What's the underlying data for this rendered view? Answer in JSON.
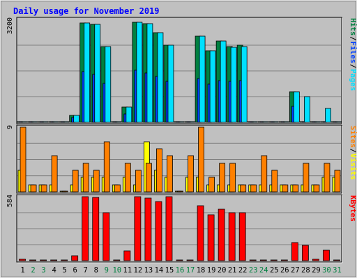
{
  "title": "Daily usage for November 2019",
  "colors": {
    "background": "#c0c0c0",
    "plot_bg": "#c0c0c0",
    "title_text": "#0000ff",
    "hits": "#008040",
    "files": "#0040ff",
    "pages": "#00e0ff",
    "visits": "#ffff00",
    "sites": "#ff8000",
    "kbytes": "#ff0000",
    "weekday_label": "#000000",
    "weekend_label": "#008040"
  },
  "chart_data": {
    "type": "bar",
    "days": [
      "1",
      "2",
      "3",
      "4",
      "5",
      "6",
      "7",
      "8",
      "9",
      "10",
      "11",
      "12",
      "13",
      "14",
      "15",
      "16",
      "17",
      "18",
      "19",
      "20",
      "21",
      "22",
      "23",
      "24",
      "25",
      "26",
      "27",
      "28",
      "29",
      "30",
      "31"
    ],
    "weekend_days": [
      "2",
      "3",
      "9",
      "10",
      "16",
      "17",
      "23",
      "24",
      "30",
      "31"
    ],
    "panels": [
      {
        "id": "requests",
        "axis_max_label": "3200",
        "ylim": [
          0,
          3200
        ],
        "legend": [
          {
            "text": "Hits",
            "color": "#008040"
          },
          {
            "text": "/",
            "color": "#000000"
          },
          {
            "text": "Files",
            "color": "#0040ff"
          },
          {
            "text": "/",
            "color": "#000000"
          },
          {
            "text": "Pages",
            "color": "#00e0ff"
          }
        ],
        "series": [
          {
            "name": "Hits",
            "color": "#008040",
            "values": [
              0,
              0,
              0,
              0,
              0,
              220,
              3100,
              3050,
              2350,
              0,
              480,
              3120,
              3070,
              2780,
              2400,
              0,
              0,
              2680,
              2230,
              2530,
              2360,
              2390,
              0,
              0,
              0,
              0,
              950,
              0,
              0,
              0,
              0
            ]
          },
          {
            "name": "Files",
            "color": "#0040ff",
            "values": [
              0,
              0,
              0,
              0,
              0,
              160,
              1580,
              1490,
              1210,
              0,
              260,
              1620,
              1530,
              1430,
              1270,
              0,
              0,
              1370,
              1180,
              1300,
              1270,
              1300,
              0,
              0,
              0,
              0,
              490,
              0,
              0,
              0,
              0
            ]
          },
          {
            "name": "Pages",
            "color": "#00e0ff",
            "values": [
              0,
              0,
              0,
              0,
              0,
              220,
              3100,
              3050,
              2350,
              0,
              480,
              3120,
              3070,
              2780,
              2400,
              0,
              0,
              2680,
              2230,
              2530,
              2340,
              2360,
              0,
              0,
              0,
              0,
              950,
              800,
              0,
              430,
              0
            ]
          }
        ]
      },
      {
        "id": "visits",
        "axis_max_label": "9",
        "ylim": [
          0,
          9
        ],
        "legend": [
          {
            "text": "Sites",
            "color": "#ff8000"
          },
          {
            "text": "/",
            "color": "#000000"
          },
          {
            "text": "Visits",
            "color": "#ffff00"
          }
        ],
        "series": [
          {
            "name": "Visits",
            "color": "#ffff00",
            "values": [
              3,
              1,
              1,
              1,
              0,
              1,
              2,
              2,
              2,
              1,
              2,
              1,
              7,
              3,
              2,
              0,
              2,
              2,
              1,
              1,
              1,
              1,
              1,
              1,
              1,
              1,
              1,
              1,
              1,
              2,
              2
            ]
          },
          {
            "name": "Sites",
            "color": "#ff8000",
            "values": [
              9,
              1,
              1,
              5,
              0,
              3,
              4,
              3,
              7,
              1,
              4,
              3,
              4,
              6,
              5,
              0,
              5,
              9,
              2,
              4,
              4,
              1,
              1,
              5,
              3,
              1,
              1,
              4,
              1,
              4,
              3
            ]
          }
        ]
      },
      {
        "id": "kbytes",
        "axis_max_label": "584",
        "ylim": [
          0,
          584
        ],
        "legend": [
          {
            "text": "KBytes",
            "color": "#ff0000"
          }
        ],
        "series": [
          {
            "name": "KBytes",
            "color": "#ff0000",
            "values": [
              12,
              6,
              6,
              6,
              0,
              45,
              584,
              575,
              440,
              0,
              90,
              584,
              570,
              540,
              584,
              0,
              0,
              500,
              420,
              470,
              440,
              440,
              6,
              6,
              6,
              6,
              165,
              140,
              15,
              95,
              0
            ]
          }
        ]
      }
    ]
  }
}
